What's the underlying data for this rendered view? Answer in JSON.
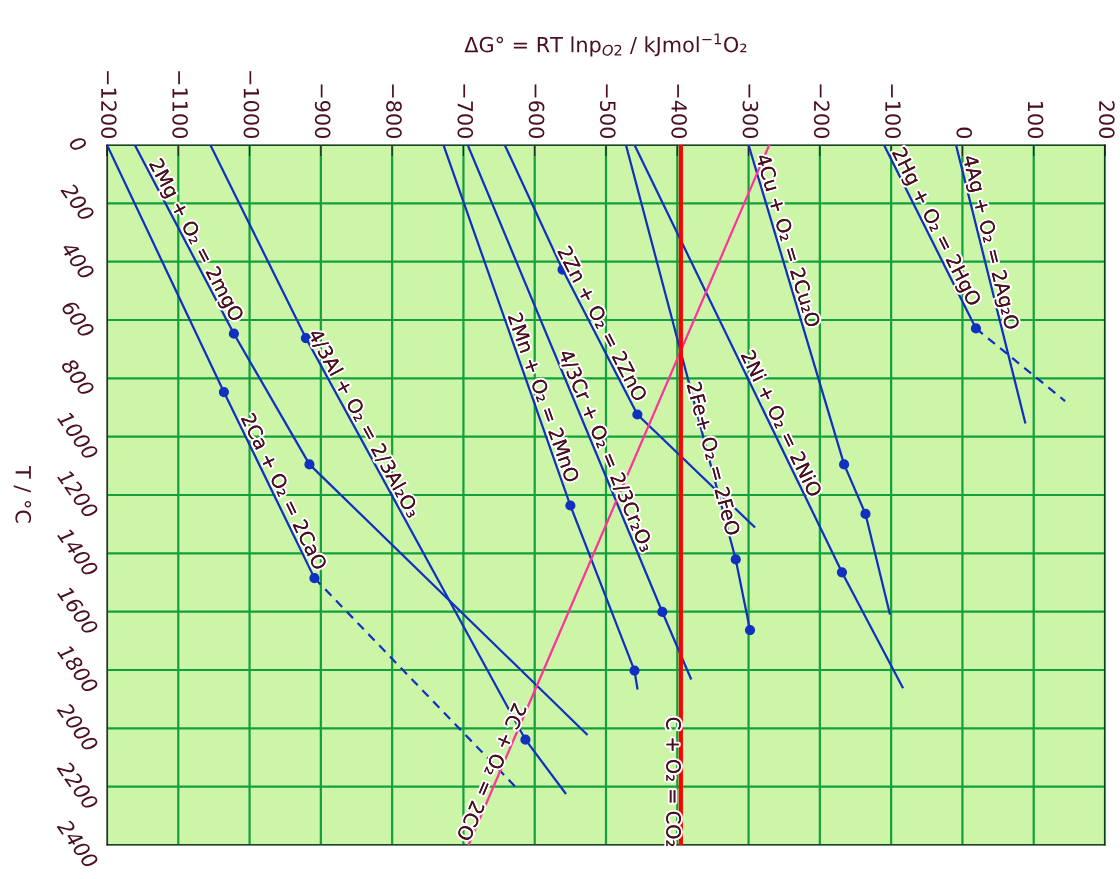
{
  "chart_data": {
    "type": "line",
    "xlabel": "ΔG° = RT lnp$_{O2}$ / kJmol$^{−1}$O₂",
    "ylabel": "T / °C",
    "xlim": [
      -1200,
      200
    ],
    "ylim": [
      2400,
      0
    ],
    "xticks": [
      -1200,
      -1100,
      -1000,
      -900,
      -800,
      -700,
      -600,
      -500,
      -400,
      -300,
      -200,
      -100,
      0,
      100,
      200
    ],
    "yticks": [
      0,
      200,
      400,
      600,
      800,
      1000,
      1200,
      1400,
      1600,
      1800,
      2000,
      2200,
      2400
    ],
    "grid": true,
    "legend": false,
    "line_style": "solid",
    "marker": "none",
    "series": [
      {
        "name": "2Ca + O₂ = 2CaO",
        "color": "#1030c0",
        "x": [
          -1200,
          -1036,
          -909
        ],
        "values": [
          0,
          847,
          1485
        ]
      },
      {
        "color": "#1030c0",
        "x": [
          -909,
          -626
        ],
        "values": [
          1485,
          2203
        ],
        "line_style": "dashed"
      },
      {
        "name": "2Mg + O₂ = 2mgO",
        "color": "#1030c0",
        "x": [
          -1161,
          -1022,
          -916,
          -527
        ],
        "values": [
          0,
          647,
          1095,
          2020
        ]
      },
      {
        "name": "4/3Al + O₂ = 2/3Al₂O₃",
        "color": "#1030c0",
        "x": [
          -1055,
          -921,
          -613,
          -557
        ],
        "values": [
          0,
          662,
          2039,
          2222
        ]
      },
      {
        "name": "2Mn + O₂ = 2MnO",
        "color": "#1030c0",
        "x": [
          -728,
          -550,
          -460,
          -456
        ],
        "values": [
          0,
          1236,
          1802,
          1863
        ]
      },
      {
        "name": "4/3Cr + O₂ = 2/3Cr₂O₃",
        "color": "#1030c0",
        "x": [
          -694,
          -421,
          -381
        ],
        "values": [
          0,
          1601,
          1829
        ]
      },
      {
        "name": "2Zn + O₂ = 2ZnO",
        "color": "#1030c0",
        "x": [
          -642,
          -561,
          -456,
          -292
        ],
        "values": [
          0,
          427,
          924,
          1309
        ]
      },
      {
        "name": "2Fe+ O₂ = 2FeO",
        "color": "#1030c0",
        "x": [
          -472,
          -318,
          -298
        ],
        "values": [
          0,
          1421,
          1663
        ]
      },
      {
        "name": "2Ni + O₂ = 2NiO",
        "color": "#1030c0",
        "x": [
          -460,
          -169,
          -84
        ],
        "values": [
          0,
          1465,
          1859
        ]
      },
      {
        "name": "4Cu + O₂ = 2Cu₂O",
        "color": "#1030c0",
        "x": [
          -300,
          -166,
          -136,
          -102
        ],
        "values": [
          0,
          1095,
          1265,
          1606
        ]
      },
      {
        "name": "2Hg + O₂ = 2HgO",
        "color": "#1030c0",
        "x": [
          -110,
          19
        ],
        "values": [
          0,
          629
        ]
      },
      {
        "color": "#1030c0",
        "x": [
          19,
          144
        ],
        "values": [
          629,
          878
        ],
        "line_style": "dashed"
      },
      {
        "name": "4Ag + O₂ = 2Ag₂O",
        "color": "#1030c0",
        "x": [
          -9,
          88
        ],
        "values": [
          0,
          951
        ]
      },
      {
        "name": "2C + O₂ = 2CO",
        "color": "#ff3399",
        "x": [
          -271,
          -693
        ],
        "values": [
          0,
          2400
        ]
      },
      {
        "name": "C + O₂ = CO₂",
        "color": "#ff0000",
        "x": [
          -395,
          -395
        ],
        "values": [
          0,
          2400
        ]
      },
      {
        "type": "scatter",
        "marker": "circle",
        "color": "#1030c0",
        "x": [
          -1036,
          -909,
          -1022,
          -916,
          -921,
          -613,
          -550,
          -460,
          -421,
          -561,
          -456,
          -318,
          -298,
          -169,
          -166,
          -136,
          19
        ],
        "values": [
          847,
          1485,
          647,
          1095,
          662,
          2039,
          1236,
          1802,
          1601,
          427,
          924,
          1421,
          1663,
          1465,
          1095,
          1265,
          629
        ]
      }
    ]
  }
}
